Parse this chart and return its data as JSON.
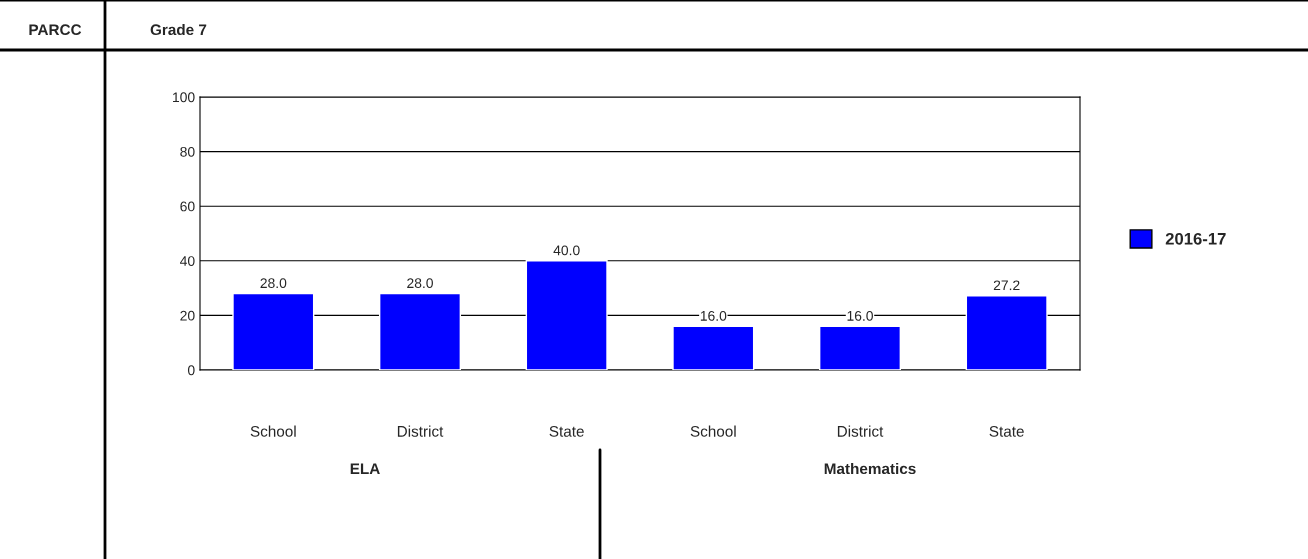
{
  "chart_data": {
    "type": "bar",
    "title": "Grade 7",
    "categories": [
      "School",
      "District",
      "State",
      "School",
      "District",
      "State"
    ],
    "series": [
      {
        "name": "2016-17",
        "color": "#0000ff",
        "values": [
          28.0,
          28.0,
          40.0,
          16.0,
          16.0,
          27.2
        ],
        "value_labels": [
          "28.0",
          "28.0",
          "40.0",
          "16.0",
          "16.0",
          "27.2"
        ]
      }
    ],
    "ylim": [
      0,
      100
    ],
    "yticks": [
      0,
      20,
      40,
      60,
      80,
      100
    ],
    "grid": "y",
    "legend": "right",
    "annotations": [
      "PARCC",
      "ELA",
      "Mathematics"
    ]
  }
}
